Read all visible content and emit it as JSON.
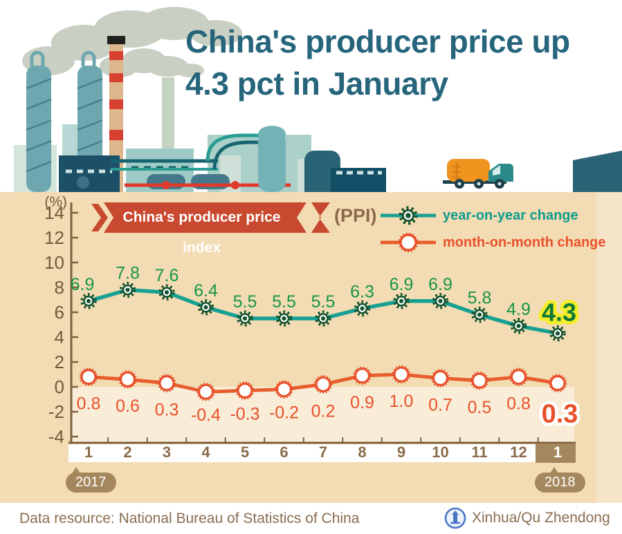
{
  "title": {
    "line1": "China's producer price up",
    "line2": "4.3 pct in January"
  },
  "banner": {
    "label": "China's producer price index",
    "suffix": "(PPI)"
  },
  "legend": [
    {
      "label": "year-on-year change"
    },
    {
      "label": "month-on-month change"
    }
  ],
  "chart_data": {
    "type": "line",
    "title": "China's producer price index (PPI)",
    "unit_label": "(%)",
    "categories": [
      "1",
      "2",
      "3",
      "4",
      "5",
      "6",
      "7",
      "8",
      "9",
      "10",
      "11",
      "12",
      "1"
    ],
    "x_groups": [
      {
        "label": "2017",
        "months": [
          "1",
          "2",
          "3",
          "4",
          "5",
          "6",
          "7",
          "8",
          "9",
          "10",
          "11",
          "12"
        ]
      },
      {
        "label": "2018",
        "months": [
          "1"
        ]
      }
    ],
    "y_ticks": [
      14,
      12,
      10,
      8,
      6,
      4,
      2,
      0,
      -2,
      -4
    ],
    "ylim": [
      -4,
      14
    ],
    "grid": false,
    "legend_position": "top-right",
    "series": [
      {
        "name": "year-on-year change",
        "color": "#18a093",
        "marker": "gear-dark-green",
        "values": [
          6.9,
          7.8,
          7.6,
          6.4,
          5.5,
          5.5,
          5.5,
          6.3,
          6.9,
          6.9,
          5.8,
          4.9,
          4.3
        ],
        "highlight_last": true
      },
      {
        "name": "month-on-month change",
        "color": "#e85d2d",
        "marker": "gear-rim-circle-orange",
        "values": [
          0.8,
          0.6,
          0.3,
          -0.4,
          -0.3,
          -0.2,
          0.2,
          0.9,
          1.0,
          0.7,
          0.5,
          0.8,
          0.3
        ],
        "highlight_last": true
      }
    ]
  },
  "x_axis": {
    "year_left": "2017",
    "year_right": "2018"
  },
  "footer": {
    "source": "Data resource: National Bureau of Statistics of China",
    "credit": "Xinhua/Qu Zhendong",
    "logo": "xinhua-logo"
  },
  "colors": {
    "panel_tan": "#f3dcb3",
    "below_zero_cream": "#f9edd8",
    "ribbon_red": "#c8492f",
    "title_teal": "#26657b",
    "yoy_line_teal": "#18a093",
    "yoy_marker_green": "#14532f",
    "yoy_label_green": "#169543",
    "mom_orange": "#e85d2d",
    "axis_brown": "#80603e",
    "bubble_brown": "#a5875d",
    "highlight_yellow": "#f4ee2a",
    "logo_blue": "#4a76c6"
  }
}
